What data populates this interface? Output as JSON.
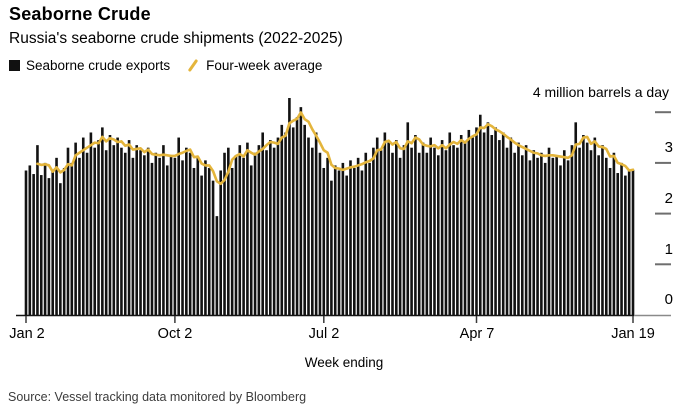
{
  "header": {
    "title": "Seaborne Crude",
    "subtitle": "Russia's seaborne crude shipments (2022-2025)"
  },
  "legend": {
    "items": [
      {
        "label": "Seaborne crude exports",
        "swatch": "square",
        "color": "#111111"
      },
      {
        "label": "Four-week average",
        "swatch": "slash",
        "color": "#E4B53C"
      }
    ]
  },
  "axes": {
    "y_unit_label": "4 million barrels a day",
    "ytick_labels": [
      "3",
      "2",
      "1",
      "0"
    ],
    "xtick_labels": [
      "Jan 2",
      "Oct 2",
      "Jul 2",
      "Apr 7",
      "Jan 19"
    ],
    "xlabel": "Week ending"
  },
  "source": "Source: Vessel tracking data monitored by Bloomberg",
  "chart_data": {
    "type": "bar",
    "title": "Seaborne Crude",
    "subtitle": "Russia's seaborne crude shipments (2022-2025)",
    "xlabel": "Week ending",
    "ylabel": "million barrels a day",
    "ylim": [
      0,
      4.3
    ],
    "yticks": [
      0,
      1,
      2,
      3,
      4
    ],
    "x_range": [
      "Jan 2, 2022",
      "Jan 19, 2025"
    ],
    "x_tick_weeks": [
      0,
      39,
      78,
      118,
      159
    ],
    "x_tick_labels": [
      "Jan 2",
      "Oct 2",
      "Jul 2",
      "Apr 7",
      "Jan 19"
    ],
    "grid": false,
    "legend_position": "top-left",
    "series": [
      {
        "name": "Seaborne crude exports",
        "type": "bar",
        "color": "#121212",
        "values": [
          2.85,
          2.95,
          2.78,
          3.35,
          2.76,
          3.0,
          2.7,
          2.85,
          3.1,
          2.6,
          2.9,
          3.3,
          3.0,
          3.4,
          3.1,
          3.5,
          3.2,
          3.6,
          3.3,
          3.45,
          3.7,
          3.25,
          3.55,
          3.35,
          3.5,
          3.3,
          3.2,
          3.45,
          3.1,
          3.35,
          3.25,
          3.15,
          3.3,
          3.0,
          3.2,
          3.1,
          3.35,
          2.95,
          3.15,
          3.1,
          3.5,
          3.05,
          3.3,
          3.2,
          2.9,
          3.1,
          2.75,
          3.05,
          2.9,
          2.65,
          1.95,
          2.85,
          3.2,
          3.3,
          2.9,
          3.15,
          3.35,
          3.1,
          3.4,
          2.95,
          3.2,
          3.35,
          3.6,
          3.25,
          3.45,
          3.3,
          3.5,
          3.75,
          3.6,
          4.28,
          3.7,
          3.9,
          4.1,
          3.75,
          3.5,
          3.3,
          3.6,
          3.2,
          2.9,
          3.1,
          2.65,
          2.95,
          2.85,
          3.0,
          2.75,
          3.05,
          2.9,
          3.1,
          2.85,
          3.2,
          3.0,
          3.3,
          3.5,
          3.25,
          3.6,
          3.4,
          3.2,
          3.45,
          3.1,
          3.35,
          3.8,
          3.3,
          3.55,
          3.2,
          3.4,
          3.2,
          3.5,
          3.3,
          3.15,
          3.45,
          3.25,
          3.6,
          3.35,
          3.3,
          3.55,
          3.4,
          3.65,
          3.5,
          3.7,
          3.95,
          3.6,
          3.8,
          3.55,
          3.7,
          3.45,
          3.6,
          3.3,
          3.5,
          3.2,
          3.4,
          3.15,
          3.35,
          3.05,
          3.25,
          3.1,
          3.2,
          3.0,
          3.3,
          3.1,
          3.15,
          2.95,
          3.25,
          3.05,
          3.35,
          3.8,
          3.3,
          3.55,
          3.4,
          3.25,
          3.5,
          3.15,
          3.35,
          3.1,
          2.9,
          3.2,
          2.8,
          3.0,
          2.75,
          2.85,
          2.86
        ]
      },
      {
        "name": "Four-week average",
        "type": "line",
        "color": "#E4B53C",
        "derived": "trailing moving average of exports",
        "window": 4
      }
    ]
  }
}
